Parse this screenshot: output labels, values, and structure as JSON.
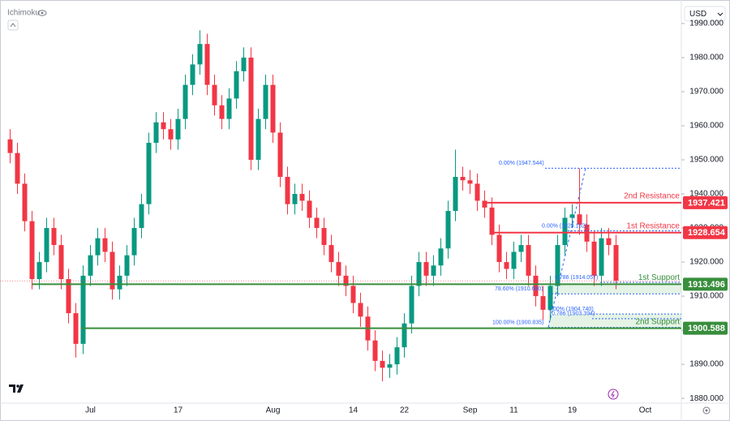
{
  "chart_data": {
    "type": "candlestick",
    "indicator": "Ichimoku",
    "currency": "USD",
    "categories": [
      null,
      null,
      null,
      null,
      null,
      null,
      null,
      null,
      null,
      null,
      null,
      "Jul",
      null,
      null,
      null,
      null,
      null,
      null,
      null,
      null,
      null,
      null,
      null,
      "17",
      null,
      null,
      null,
      null,
      null,
      null,
      null,
      null,
      null,
      null,
      null,
      null,
      "Aug",
      null,
      null,
      null,
      null,
      null,
      null,
      null,
      null,
      null,
      null,
      "14",
      null,
      null,
      null,
      null,
      null,
      null,
      "22",
      null,
      null,
      null,
      null,
      null,
      null,
      null,
      null,
      "Sep",
      null,
      null,
      null,
      null,
      null,
      "11",
      null,
      null,
      null,
      null,
      null,
      null,
      null,
      "19",
      null,
      null,
      null,
      null,
      null,
      null,
      null,
      null,
      null,
      "Oct"
    ],
    "open": [
      1956,
      1952,
      1943,
      1932,
      1915,
      1920,
      1930,
      1925,
      1915,
      1905,
      1896,
      1916,
      1922,
      1927,
      1923,
      1912,
      1916,
      1922,
      1930,
      1937,
      1955,
      1961,
      1959,
      1956,
      1962,
      1972,
      1978,
      1984,
      1972,
      1966,
      1962,
      1968,
      1976,
      1980,
      1950,
      1962,
      1972,
      1958,
      1945,
      1937,
      1940,
      1938,
      1933,
      1930,
      1925,
      1920,
      1916,
      1913,
      1908,
      1904,
      1897,
      1891,
      1889,
      1890,
      1895,
      1902,
      1913,
      1920,
      1916,
      1919,
      1924,
      1935,
      1945,
      1944,
      1943,
      1938,
      1936,
      1928,
      1920,
      1918,
      1923,
      1925,
      1916,
      1910,
      1906,
      1913,
      1925,
      1933,
      1934,
      1931,
      1926,
      1916,
      1927,
      1925,
      null,
      null,
      null,
      null
    ],
    "high": [
      1959,
      1955,
      1946,
      1935,
      1923,
      1933,
      1933,
      1928,
      1918,
      1908,
      1919,
      1925,
      1930,
      1930,
      1926,
      1919,
      1925,
      1933,
      1940,
      1958,
      1964,
      1964,
      1962,
      1965,
      1975,
      1981,
      1988,
      1987,
      1975,
      1969,
      1971,
      1979,
      1983,
      1983,
      1965,
      1975,
      1975,
      1961,
      1948,
      1943,
      1943,
      1941,
      1936,
      1933,
      1928,
      1923,
      1919,
      1916,
      1911,
      1907,
      1900,
      1894,
      1893,
      1898,
      1905,
      1916,
      1923,
      1923,
      1922,
      1927,
      1938,
      1953,
      1948,
      1947,
      1946,
      1941,
      1939,
      1931,
      1923,
      1926,
      1928,
      1928,
      1919,
      1913,
      1916,
      1928,
      1936,
      1937,
      1947.5,
      1934,
      1929,
      1930,
      1930,
      1928,
      null,
      null,
      null,
      null
    ],
    "low": [
      1949,
      1940,
      1929,
      1912,
      1912,
      1917,
      1922,
      1912,
      1902,
      1892,
      1893,
      1913,
      1919,
      1920,
      1909,
      1909,
      1913,
      1919,
      1927,
      1934,
      1952,
      1956,
      1953,
      1953,
      1959,
      1969,
      1975,
      1969,
      1963,
      1959,
      1959,
      1965,
      1973,
      1947,
      1947,
      1959,
      1955,
      1942,
      1934,
      1934,
      1935,
      1930,
      1927,
      1922,
      1917,
      1913,
      1910,
      1905,
      1901,
      1894,
      1888,
      1885,
      1886,
      1887,
      1892,
      1899,
      1910,
      1913,
      1913,
      1916,
      1921,
      1932,
      1941,
      1940,
      1935,
      1933,
      1925,
      1917,
      1915,
      1915,
      1920,
      1913,
      1907,
      1903,
      1903,
      1910,
      1922,
      1930,
      1928,
      1923,
      1913,
      1913,
      1922,
      1912,
      null,
      null,
      null,
      null
    ],
    "close": [
      1952,
      1943,
      1932,
      1915,
      1920,
      1930,
      1925,
      1915,
      1905,
      1896,
      1916,
      1922,
      1927,
      1923,
      1912,
      1916,
      1922,
      1930,
      1937,
      1955,
      1961,
      1959,
      1956,
      1962,
      1972,
      1978,
      1984,
      1972,
      1966,
      1962,
      1968,
      1976,
      1980,
      1950,
      1962,
      1972,
      1958,
      1945,
      1937,
      1940,
      1938,
      1933,
      1930,
      1925,
      1920,
      1916,
      1913,
      1908,
      1904,
      1897,
      1891,
      1889,
      1890,
      1895,
      1902,
      1913,
      1920,
      1916,
      1919,
      1924,
      1935,
      1945,
      1944,
      1943,
      1938,
      1936,
      1928,
      1920,
      1918,
      1923,
      1925,
      1916,
      1910,
      1906,
      1913,
      1925,
      1933,
      1934,
      1931,
      1926,
      1916,
      1927,
      1925,
      1914.5,
      null,
      null,
      null,
      null
    ],
    "up_color": "#089981",
    "down_color": "#f23645",
    "ylim": [
      1878.6,
      1995
    ],
    "yticks": [
      {
        "value": 1880,
        "label": "1880.000"
      },
      {
        "value": 1890,
        "label": "1890.000"
      },
      {
        "value": 1900,
        "label": "1900.000"
      },
      {
        "value": 1910,
        "label": "1910.000"
      },
      {
        "value": 1920,
        "label": "1920.000"
      },
      {
        "value": 1930,
        "label": "1930.000"
      },
      {
        "value": 1940,
        "label": "1940.000"
      },
      {
        "value": 1950,
        "label": "1950.000"
      },
      {
        "value": 1960,
        "label": "1960.000"
      },
      {
        "value": 1970,
        "label": "1970.000"
      },
      {
        "value": 1980,
        "label": "1980.000"
      },
      {
        "value": 1990,
        "label": "1990.000"
      }
    ],
    "levels": [
      {
        "name": "2nd Resistance",
        "value": 1937.421,
        "color": "#f23645"
      },
      {
        "name": "1st Resistance",
        "value": 1928.654,
        "color": "#f23645"
      },
      {
        "name": "1st Support",
        "value": 1913.496,
        "color": "#388e3c"
      },
      {
        "name": "2nd Support",
        "value": 1900.588,
        "color": "#388e3c"
      }
    ],
    "fib_levels": [
      {
        "label": "0.00% (1947.544)",
        "value": 1947.544
      },
      {
        "label": "0.00% (1929.152)",
        "value": 1929.152
      },
      {
        "label": "78.60% (1910.680)",
        "value": 1910.68
      },
      {
        "label": "0.786 (1914.057)",
        "value": 1914.057
      },
      {
        "label": "100.00% (1900.835)",
        "value": 1900.835
      },
      {
        "label": "0.786 (1903.394)",
        "value": 1903.394
      },
      {
        "label": "1.00% (1904.740)",
        "value": 1904.74
      }
    ]
  }
}
